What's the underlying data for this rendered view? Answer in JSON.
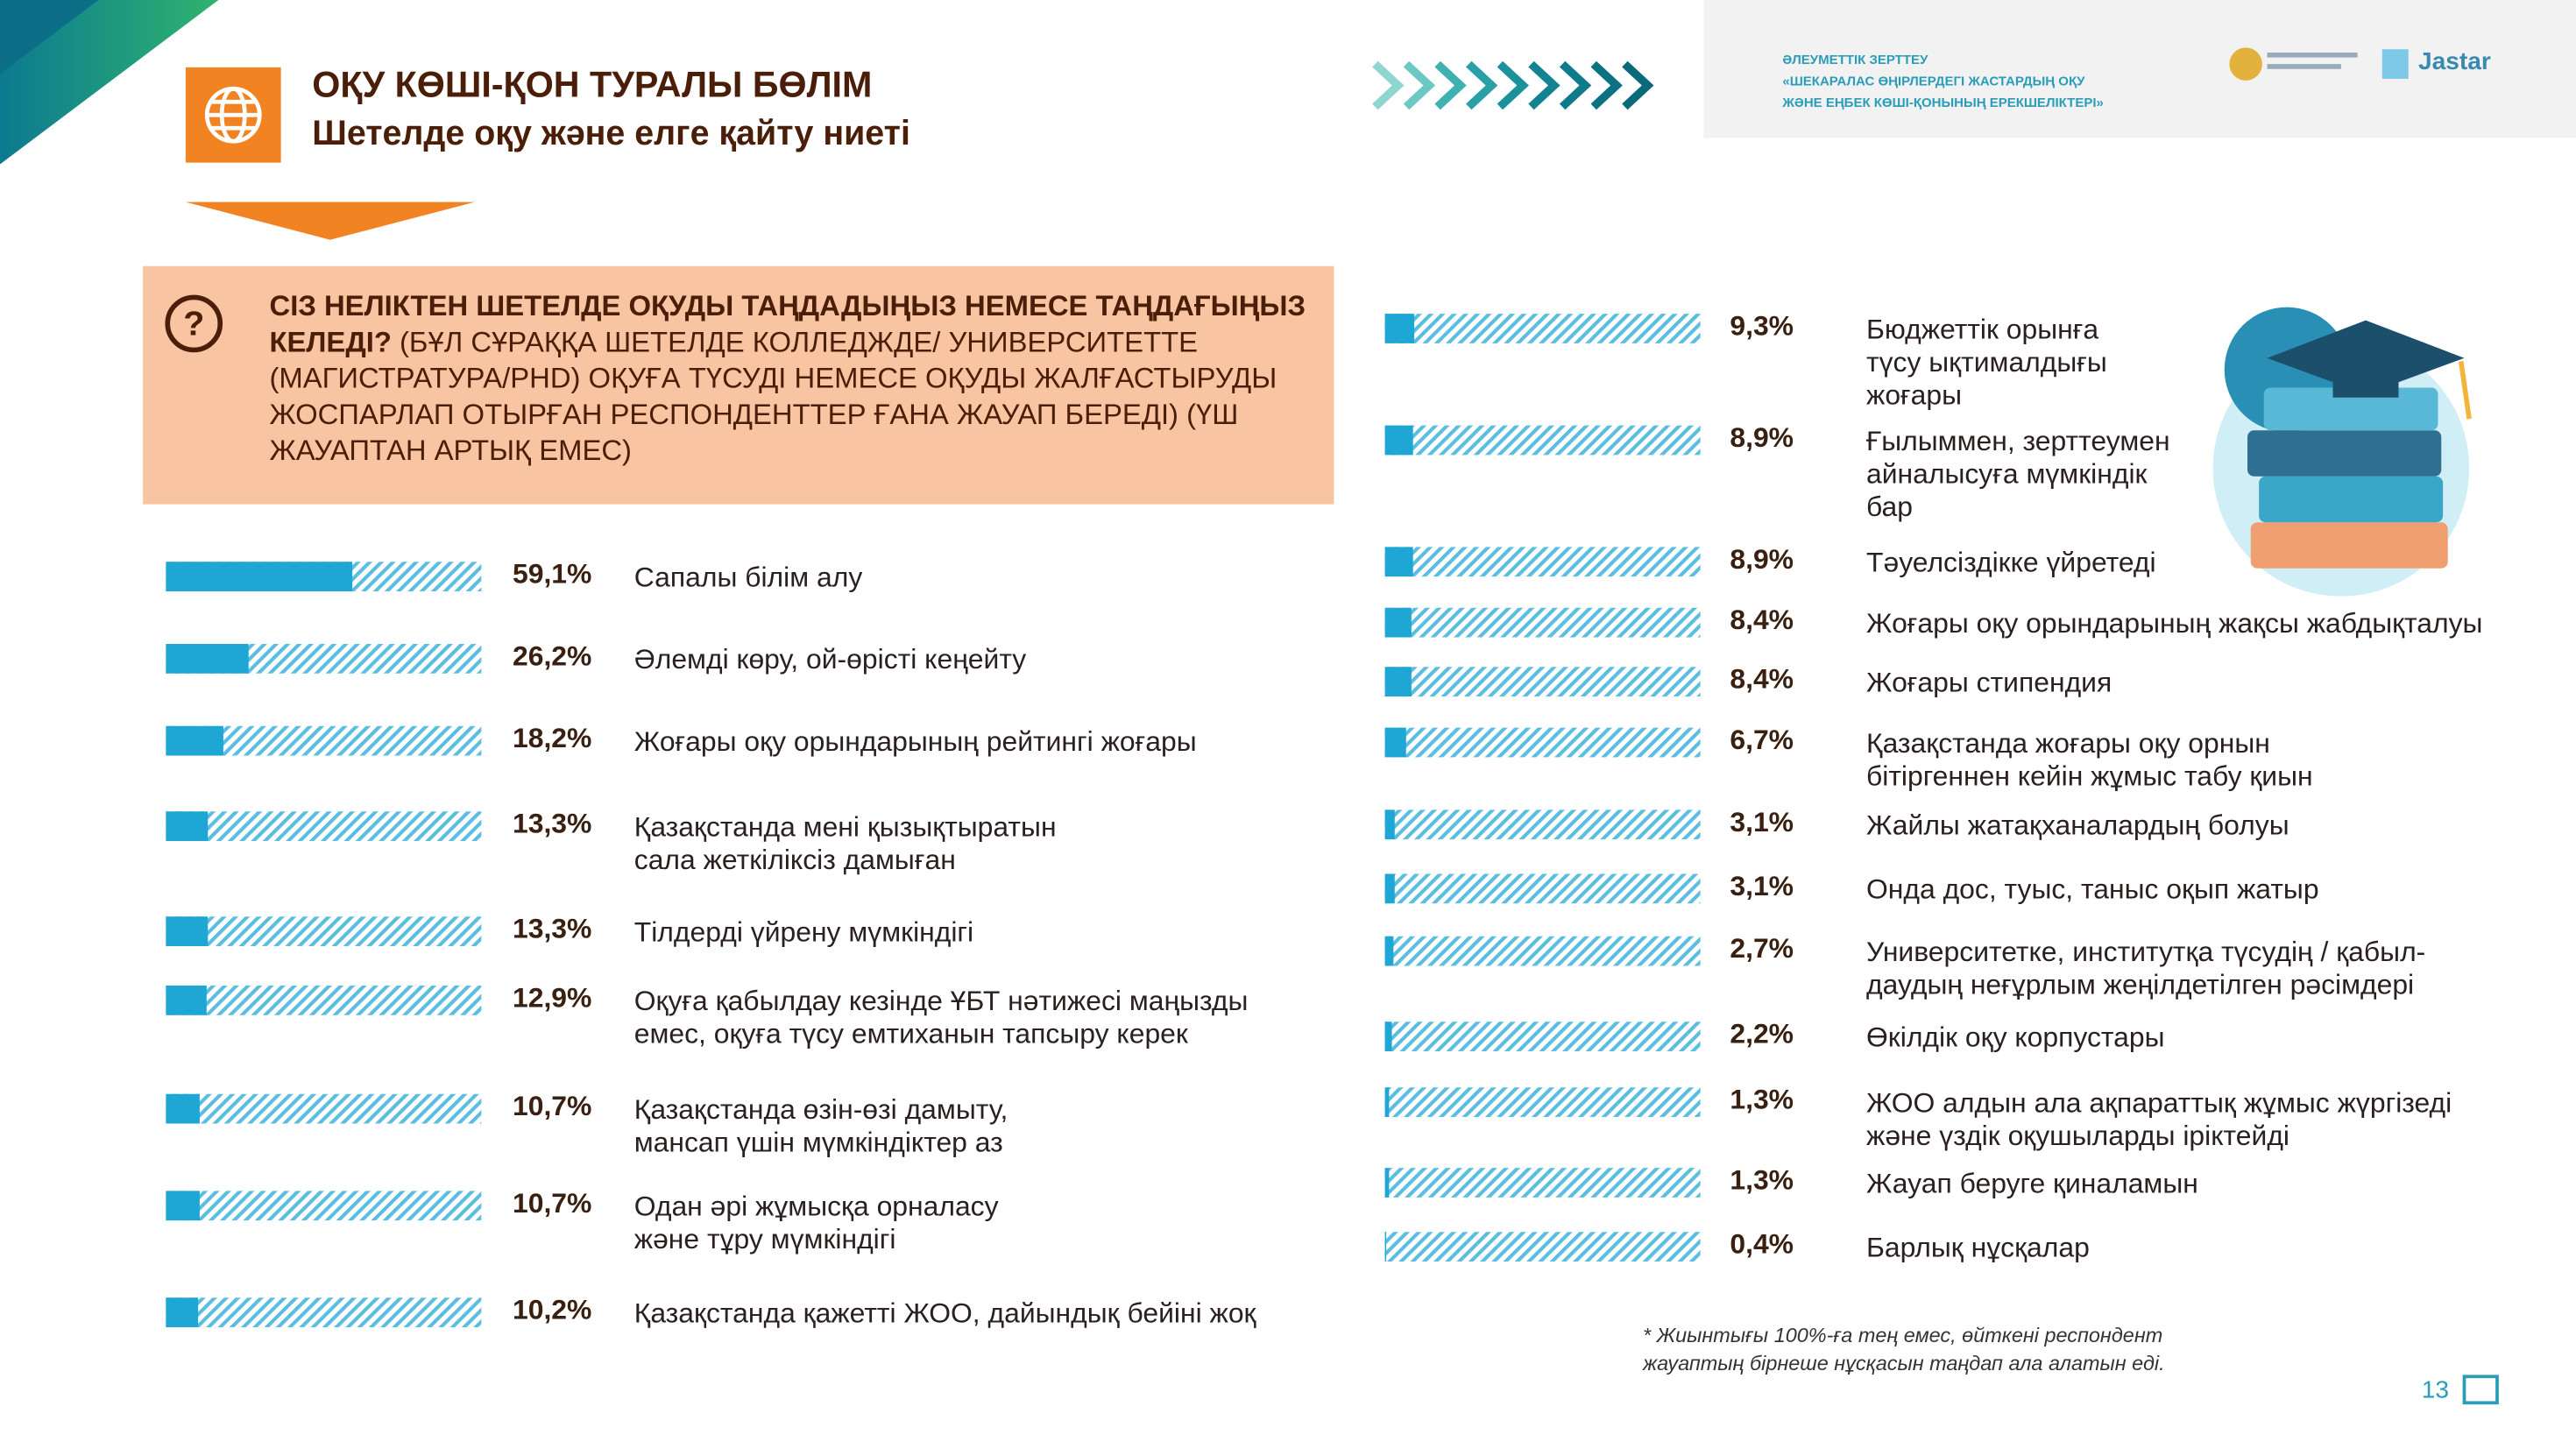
{
  "header": {
    "title": "ОҚУ КӨШІ-ҚОН ТУРАЛЫ БӨЛІМ",
    "subtitle": "Шетелде оқу және елге қайту ниеті",
    "study_label": "ӘЛЕУМЕТТІК ЗЕРТТЕУ",
    "study_title": "«ШЕКАРАЛАС ӨҢІРЛЕРДЕГІ ЖАСТАРДЫҢ ОҚУ\nЖӘНЕ ЕҢБЕК КӨШІ-ҚОНЫНЫҢ ЕРЕКШЕЛІКТЕРІ»",
    "logo": "Jastar"
  },
  "question": {
    "main": "СІЗ НЕЛІКТЕН ШЕТЕЛДЕ ОҚУДЫ ТАҢДАДЫҢЫЗ НЕМЕСЕ ТАҢДАҒЫҢЫЗ КЕЛЕДІ?",
    "note": " (БҰЛ СҰРАҚҚА ШЕТЕЛДЕ КОЛЛЕДЖДЕ/ УНИВЕРСИТЕТТЕ (МАГИСТРАТУРА/PHD) ОҚУҒА ТҮСУДІ НЕМЕСЕ ОҚУДЫ ЖАЛҒАСТЫРУДЫ ЖОСПАРЛАП ОТЫРҒАН РЕСПОНДЕНТТЕР ҒАНА ЖАУАП БЕРЕДІ)  (ҮШ ЖАУАПТАН АРТЫҚ ЕМЕС)"
  },
  "chart_data": [
    {
      "type": "bar",
      "orientation": "horizontal",
      "xlim": [
        0,
        100
      ],
      "color": "#1ea6d4",
      "categories": [
        "Сапалы білім алу",
        "Әлемді көру, ой-өрісті кеңейту",
        "Жоғары оқу орындарының рейтингі жоғары",
        "Қазақстанда мені қызықтыратын\nсала жеткіліксіз дамыған",
        "Тілдерді үйрену мүмкіндігі",
        "Оқуға қабылдау кезінде ҰБТ нәтижесі маңызды\nемес, оқуға түсу емтиханын тапсыру керек",
        "Қазақстанда өзін-өзі дамыту,\nмансап үшін мүмкіндіктер аз",
        "Одан әрі жұмысқа орналасу\nжәне тұру мүмкіндігі",
        "Қазақстанда қажетті ЖОО, дайындық бейіні жоқ"
      ],
      "values": [
        59.1,
        26.2,
        18.2,
        13.3,
        13.3,
        12.9,
        10.7,
        10.7,
        10.2
      ],
      "value_labels": [
        "59,1%",
        "26,2%",
        "18,2%",
        "13,3%",
        "13,3%",
        "12,9%",
        "10,7%",
        "10,7%",
        "10,2%"
      ]
    },
    {
      "type": "bar",
      "orientation": "horizontal",
      "xlim": [
        0,
        100
      ],
      "color": "#1ea6d4",
      "categories": [
        "Бюджеттік орынға\nтүсу ықтималдығы\nжоғары",
        "Ғылыммен, зерттеумен\nайналысуға мүмкіндік\nбар",
        "Тәуелсіздікке үйретеді",
        "Жоғары оқу орындарының жақсы жабдықталуы",
        "Жоғары стипендия",
        "Қазақстанда жоғары оқу орнын\nбітіргеннен кейін жұмыс табу қиын",
        "Жайлы жатақханалардың болуы",
        "Онда дос, туыс, таныс оқып жатыр",
        "Университетке, институтқа түсудің / қабыл-\nдаудың неғұрлым жеңілдетілген рәсімдері",
        "Өкілдік оқу корпустары",
        "ЖОО алдын ала ақпараттық жұмыс жүргізеді\nжәне үздік оқушыларды іріктейді",
        "Жауап беруге қиналамын",
        "Барлық нұсқалар"
      ],
      "values": [
        9.3,
        8.9,
        8.9,
        8.4,
        8.4,
        6.7,
        3.1,
        3.1,
        2.7,
        2.2,
        1.3,
        1.3,
        0.4
      ],
      "value_labels": [
        "9,3%",
        "8,9%",
        "8,9%",
        "8,4%",
        "8,4%",
        "6,7%",
        "3,1%",
        "3,1%",
        "2,7%",
        "2,2%",
        "1,3%",
        "1,3%",
        "0,4%"
      ]
    }
  ],
  "footnote": "* Жиынтығы  100%-ға тең емес, өйткені респондент\nжауаптың бірнеше нұсқасын таңдап ала алатын еді.",
  "page_number": "13"
}
